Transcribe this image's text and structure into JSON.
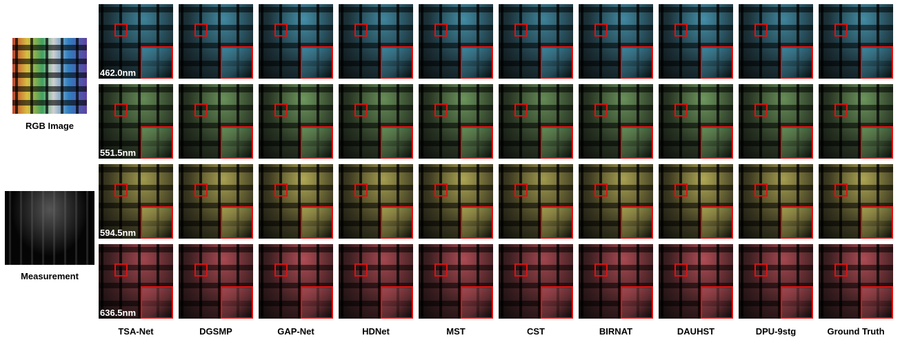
{
  "left": {
    "rgb_label": "RGB Image",
    "measurement_label": "Measurement"
  },
  "rows": [
    {
      "wavelength": "462.0nm"
    },
    {
      "wavelength": "551.5nm"
    },
    {
      "wavelength": "594.5nm"
    },
    {
      "wavelength": "636.5nm"
    }
  ],
  "methods": [
    "TSA-Net",
    "DGSMP",
    "GAP-Net",
    "HDNet",
    "MST",
    "CST",
    "BIRNAT",
    "DAUHST",
    "DPU-9stg",
    "Ground Truth"
  ]
}
